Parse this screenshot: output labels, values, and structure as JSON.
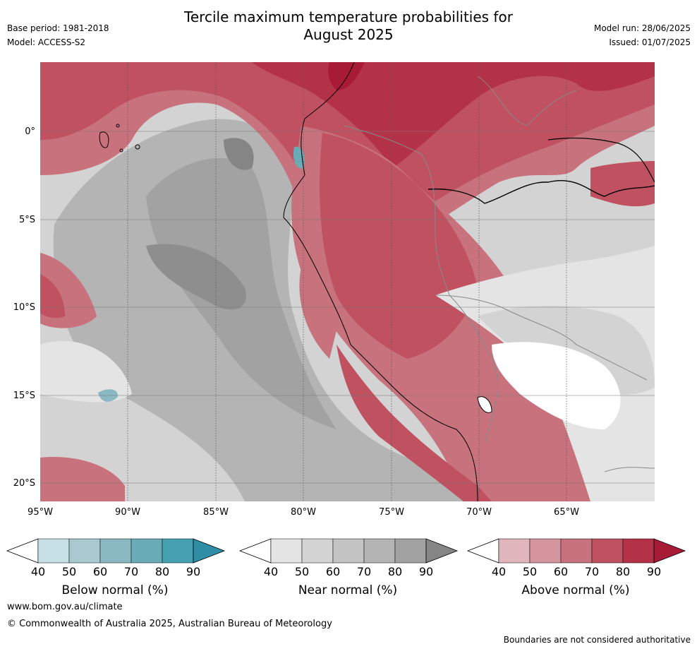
{
  "title_line1": "Tercile maximum temperature probabilities for",
  "title_line2": "August 2025",
  "base_period": "Base period: 1981-2018",
  "model": "Model: ACCESS-S2",
  "model_run": "Model run: 28/06/2025",
  "issued": "Issued: 01/07/2025",
  "map": {
    "lat_labels": [
      "0°",
      "5°S",
      "10°S",
      "15°S",
      "20°S"
    ],
    "lon_labels": [
      "95°W",
      "90°W",
      "85°W",
      "80°W",
      "75°W",
      "70°W",
      "65°W"
    ]
  },
  "colorbars": [
    {
      "label": "Below normal (%)",
      "ticks": [
        "40",
        "50",
        "60",
        "70",
        "80",
        "90"
      ],
      "colors": [
        "#c8e1e7",
        "#a7c9cf",
        "#8ab9c2",
        "#6aabb8",
        "#45a1b1",
        "#2f8ea5"
      ]
    },
    {
      "label": "Near normal (%)",
      "ticks": [
        "40",
        "50",
        "60",
        "70",
        "80",
        "90"
      ],
      "colors": [
        "#e4e4e4",
        "#d3d3d3",
        "#c4c4c4",
        "#b4b4b4",
        "#a2a2a2",
        "#858585"
      ]
    },
    {
      "label": "Above normal (%)",
      "ticks": [
        "40",
        "50",
        "60",
        "70",
        "80",
        "90"
      ],
      "colors": [
        "#e0b5bc",
        "#d5959e",
        "#c8727d",
        "#bf5161",
        "#b43247",
        "#a81b37"
      ]
    }
  ],
  "footer": {
    "url": "www.bom.gov.au/climate",
    "copyright": "© Commonwealth of Australia 2025, Australian Bureau of Meteorology",
    "disclaimer": "Boundaries are not considered authoritative"
  }
}
